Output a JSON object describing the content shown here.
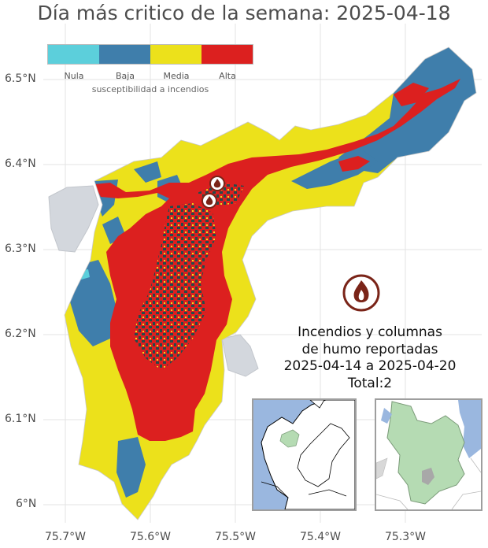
{
  "title": "Día más critico de la semana: 2025-04-18",
  "legend": {
    "title": "susceptibilidad a incendios",
    "items": [
      {
        "label": "Nula",
        "color": "#5ccfdb"
      },
      {
        "label": "Baja",
        "color": "#3f7eab"
      },
      {
        "label": "Media",
        "color": "#ece11b"
      },
      {
        "label": "Alta",
        "color": "#dc201f"
      }
    ]
  },
  "axes": {
    "y_ticks": [
      "6.5°N",
      "6.4°N",
      "6.3°N",
      "6.2°N",
      "6.1°N",
      "6°N"
    ],
    "x_ticks": [
      "75.7°W",
      "75.6°W",
      "75.5°W",
      "75.4°W",
      "75.3°W"
    ]
  },
  "annotation": {
    "line1": "Incendios y columnas",
    "line2": "de humo reportadas",
    "line3": "2025-04-14 a 2025-04-20",
    "line4": "Total:2"
  },
  "colors": {
    "background": "#ffffff",
    "grid": "#e3e3e3",
    "neighbor_region": "#d3d7dd",
    "dense_mix": "#234b4b",
    "fire_icon": "#7a2418",
    "inset_sea": "#9ab7df",
    "inset_region": "#b5dbb3"
  },
  "fire_points": [
    {
      "lon": -75.53,
      "lat": 6.375
    },
    {
      "lon": -75.535,
      "lat": 6.355
    }
  ],
  "icons": [
    "fire-marker-icon",
    "fire-legend-icon"
  ]
}
